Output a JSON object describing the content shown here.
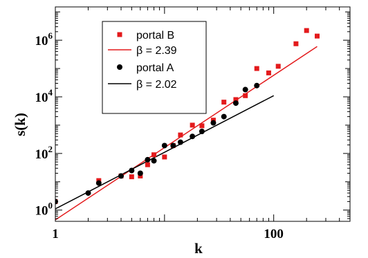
{
  "chart_data": {
    "type": "scatter",
    "title": "",
    "xlabel": "k",
    "ylabel": "s(k)",
    "xscale": "log",
    "yscale": "log",
    "xlim": [
      1,
      500
    ],
    "ylim": [
      0.4,
      15000000
    ],
    "x_ticks": [
      {
        "value": 1,
        "label": "1"
      },
      {
        "value": 100,
        "label": "100"
      }
    ],
    "y_ticks": [
      {
        "value": 1,
        "base": "10",
        "exp": "0"
      },
      {
        "value": 100,
        "base": "10",
        "exp": "2"
      },
      {
        "value": 10000,
        "base": "10",
        "exp": "4"
      },
      {
        "value": 1000000,
        "base": "10",
        "exp": "6"
      }
    ],
    "grid": false,
    "legend_position": "top-left",
    "series": [
      {
        "name": "portal B",
        "kind": "points",
        "marker": "square",
        "color": "#e31a1c",
        "points": [
          [
            1,
            2
          ],
          [
            2.5,
            11
          ],
          [
            4,
            16
          ],
          [
            5,
            15
          ],
          [
            6,
            16
          ],
          [
            7,
            40
          ],
          [
            8,
            90
          ],
          [
            10,
            75
          ],
          [
            12,
            190
          ],
          [
            14,
            450
          ],
          [
            18,
            1000
          ],
          [
            22,
            950
          ],
          [
            28,
            1500
          ],
          [
            35,
            6500
          ],
          [
            45,
            8000
          ],
          [
            55,
            11000
          ],
          [
            70,
            100000
          ],
          [
            90,
            70000
          ],
          [
            110,
            120000
          ],
          [
            160,
            750000
          ],
          [
            200,
            2200000
          ],
          [
            250,
            1400000
          ]
        ]
      },
      {
        "name": "β = 2.39",
        "kind": "fit",
        "color": "#e31a1c",
        "line": [
          [
            1,
            0.45
          ],
          [
            250,
            600000
          ]
        ]
      },
      {
        "name": "portal A",
        "kind": "points",
        "marker": "circle",
        "color": "#000000",
        "points": [
          [
            1,
            2
          ],
          [
            2,
            4
          ],
          [
            2.5,
            9
          ],
          [
            4,
            16
          ],
          [
            5,
            25
          ],
          [
            6,
            20
          ],
          [
            7,
            60
          ],
          [
            8,
            55
          ],
          [
            10,
            190
          ],
          [
            12,
            190
          ],
          [
            14,
            250
          ],
          [
            18,
            400
          ],
          [
            22,
            600
          ],
          [
            28,
            1200
          ],
          [
            35,
            2000
          ],
          [
            45,
            6000
          ],
          [
            55,
            18000
          ],
          [
            70,
            25000
          ]
        ]
      },
      {
        "name": "β = 2.02",
        "kind": "fit",
        "color": "#000000",
        "line": [
          [
            1,
            1.1
          ],
          [
            100,
            11000
          ]
        ]
      }
    ]
  }
}
